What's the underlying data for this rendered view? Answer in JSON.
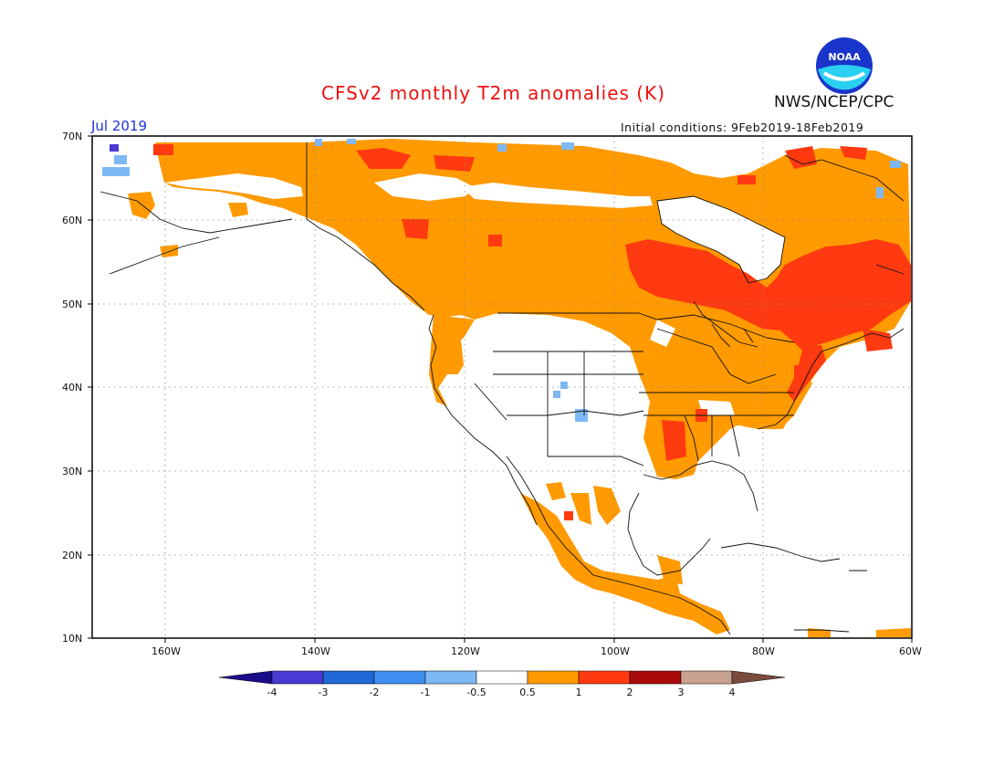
{
  "header": {
    "title": "CFSv2 monthly T2m anomalies (K)",
    "month": "Jul 2019",
    "initial_conditions": "Initial conditions: 9Feb2019-18Feb2019",
    "org": "NWS/NCEP/CPC",
    "logo_text": "NOAA"
  },
  "axes": {
    "lat_labels": [
      "70N",
      "60N",
      "50N",
      "40N",
      "30N",
      "20N",
      "10N"
    ],
    "lon_labels": [
      "160W",
      "140W",
      "120W",
      "100W",
      "80W",
      "60W"
    ]
  },
  "colorbar": {
    "labels": [
      "-4",
      "-3",
      "-2",
      "-1",
      "-0.5",
      "0.5",
      "1",
      "2",
      "3",
      "4"
    ],
    "colors": [
      "#1a0d8a",
      "#4a39d2",
      "#1f67d4",
      "#3f8ff0",
      "#7eb9f5",
      "#ffffff",
      "#ff9a00",
      "#ff3a10",
      "#a90b0b",
      "#c9a191",
      "#7a4c3e"
    ]
  },
  "legend_colors": {
    "positive_0p5_1": "#ff9a00",
    "positive_1_2": "#ff3a10",
    "negative_0p5_1": "#7eb9f5",
    "negative_1_2": "#3f8ff0"
  }
}
